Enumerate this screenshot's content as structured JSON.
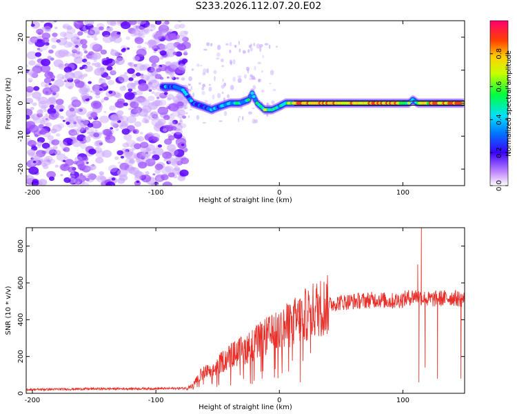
{
  "page": {
    "title": "S233.2026.112.07.20.E02"
  },
  "chart_data": [
    {
      "id": "spectrogram",
      "type": "heatmap",
      "title": "S233.2026.112.07.20.E02",
      "xlabel": "Height of straight line (km)",
      "ylabel": "Frequency (Hz)",
      "xlim": [
        -205,
        150
      ],
      "ylim": [
        -25,
        25
      ],
      "xticks": [
        -200,
        -100,
        0,
        100
      ],
      "yticks": [
        -20,
        -10,
        0,
        10,
        20
      ],
      "colorbar": {
        "label": "Normalized spectral amplitude",
        "range": [
          0.0,
          1.0
        ],
        "ticks": [
          "0.0",
          "0.2",
          "0.4",
          "0.6",
          "0.8"
        ]
      },
      "noise_region_x": [
        -205,
        -80
      ],
      "ridge": {
        "x": [
          -95,
          -85,
          -78,
          -70,
          -62,
          -55,
          -48,
          -40,
          -32,
          -25,
          -22,
          -18,
          -12,
          -6,
          0,
          5,
          10,
          15,
          30,
          60,
          90,
          105,
          108,
          112,
          125,
          150
        ],
        "freq": [
          5,
          5,
          4,
          0,
          -1,
          -2,
          -1,
          0,
          0,
          1,
          3,
          0,
          -2,
          -2,
          -1,
          0,
          0,
          0,
          0,
          0,
          0,
          0,
          1,
          0,
          0,
          0
        ],
        "level": [
          0.3,
          0.35,
          0.45,
          0.3,
          0.3,
          0.35,
          0.4,
          0.45,
          0.5,
          0.45,
          0.4,
          0.5,
          0.6,
          0.55,
          0.5,
          0.6,
          0.7,
          0.85,
          0.85,
          0.8,
          0.85,
          0.6,
          0.4,
          0.7,
          0.85,
          0.85
        ]
      }
    },
    {
      "id": "snr",
      "type": "line",
      "xlabel": "Height of straight line (km)",
      "ylabel": "SNR (10 * v/v)",
      "xlim": [
        -205,
        150
      ],
      "ylim": [
        0,
        900
      ],
      "xticks": [
        -200,
        -100,
        0,
        100
      ],
      "yticks": [
        0,
        200,
        400,
        600,
        800
      ],
      "series": [
        {
          "name": "SNR",
          "color": "#e8302a",
          "x": [
            -205,
            -180,
            -150,
            -120,
            -90,
            -75,
            -70,
            -65,
            -60,
            -55,
            -50,
            -45,
            -40,
            -35,
            -30,
            -25,
            -20,
            -15,
            -10,
            -5,
            0,
            5,
            10,
            15,
            20,
            25,
            30,
            35,
            40,
            45,
            50,
            60,
            70,
            80,
            90,
            100,
            105,
            110,
            115,
            120,
            130,
            140,
            150
          ],
          "values": [
            20,
            22,
            24,
            25,
            26,
            28,
            40,
            90,
            120,
            110,
            150,
            180,
            200,
            220,
            230,
            250,
            270,
            290,
            310,
            320,
            340,
            360,
            380,
            400,
            420,
            440,
            460,
            470,
            480,
            490,
            495,
            500,
            505,
            510,
            500,
            510,
            520,
            530,
            520,
            510,
            515,
            520,
            510
          ]
        }
      ],
      "dips": [
        {
          "x": -22,
          "value": 50
        },
        {
          "x": -14,
          "value": 80
        },
        {
          "x": 17,
          "value": 60
        },
        {
          "x": 113,
          "value": 60
        },
        {
          "x": 118,
          "value": 140
        },
        {
          "x": 128,
          "value": 80
        },
        {
          "x": 147,
          "value": 80
        }
      ],
      "peaks": [
        {
          "x": 112,
          "value": 700
        },
        {
          "x": 115,
          "value": 900
        }
      ]
    }
  ]
}
